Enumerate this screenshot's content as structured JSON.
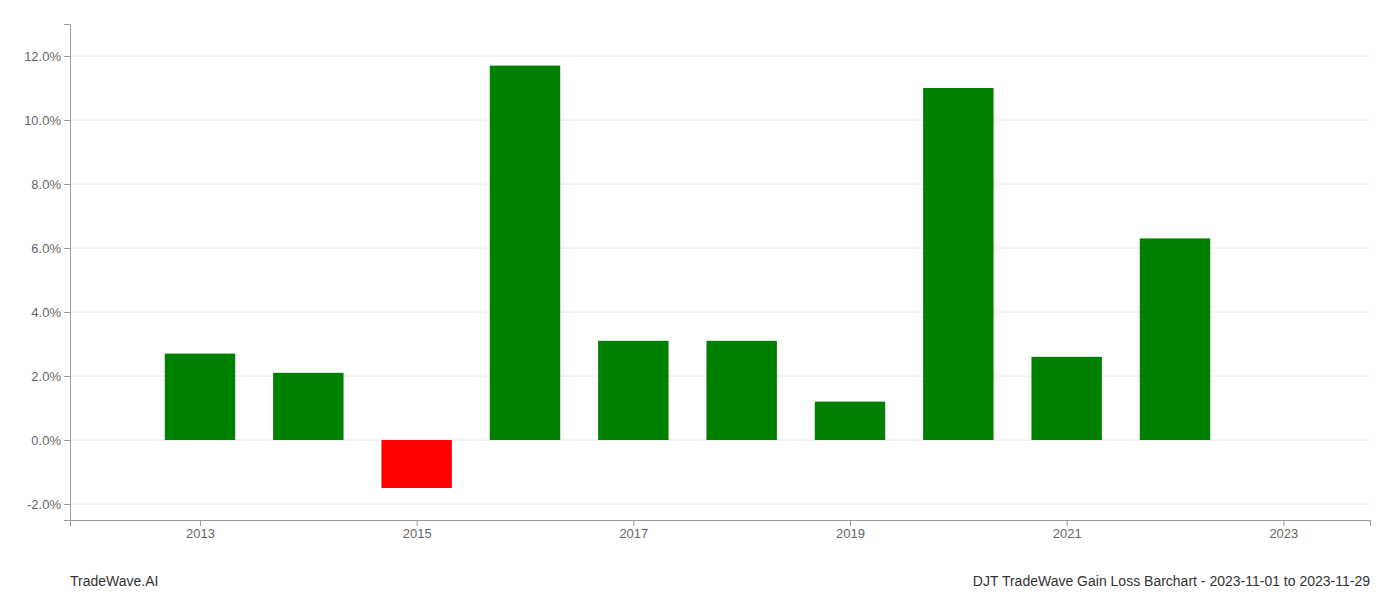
{
  "chart_data": {
    "type": "bar",
    "title": "DJT TradeWave Gain Loss Barchart - 2023-11-01 to 2023-11-29",
    "annotations": [
      "TradeWave.AI"
    ],
    "x": [
      2013,
      2014,
      2015,
      2016,
      2017,
      2018,
      2019,
      2020,
      2021,
      2022
    ],
    "values": [
      0.027,
      0.021,
      -0.015,
      0.117,
      0.031,
      0.031,
      0.012,
      0.11,
      0.026,
      0.063
    ],
    "colors": [
      "#008000",
      "#008000",
      "#ff0000",
      "#008000",
      "#008000",
      "#008000",
      "#008000",
      "#008000",
      "#008000",
      "#008000"
    ],
    "xlim": [
      2011.8,
      2023.8
    ],
    "xticks": [
      2013,
      2015,
      2017,
      2019,
      2021,
      2023
    ],
    "ylim": [
      -0.025,
      0.13
    ],
    "yticks": [
      {
        "value": -0.02,
        "label": "-2.0%"
      },
      {
        "value": 0.0,
        "label": "0.0%"
      },
      {
        "value": 0.02,
        "label": "2.0%"
      },
      {
        "value": 0.04,
        "label": "4.0%"
      },
      {
        "value": 0.06,
        "label": "6.0%"
      },
      {
        "value": 0.08,
        "label": "8.0%"
      },
      {
        "value": 0.1,
        "label": "10.0%"
      },
      {
        "value": 0.12,
        "label": "12.0%"
      }
    ],
    "grid": true
  }
}
